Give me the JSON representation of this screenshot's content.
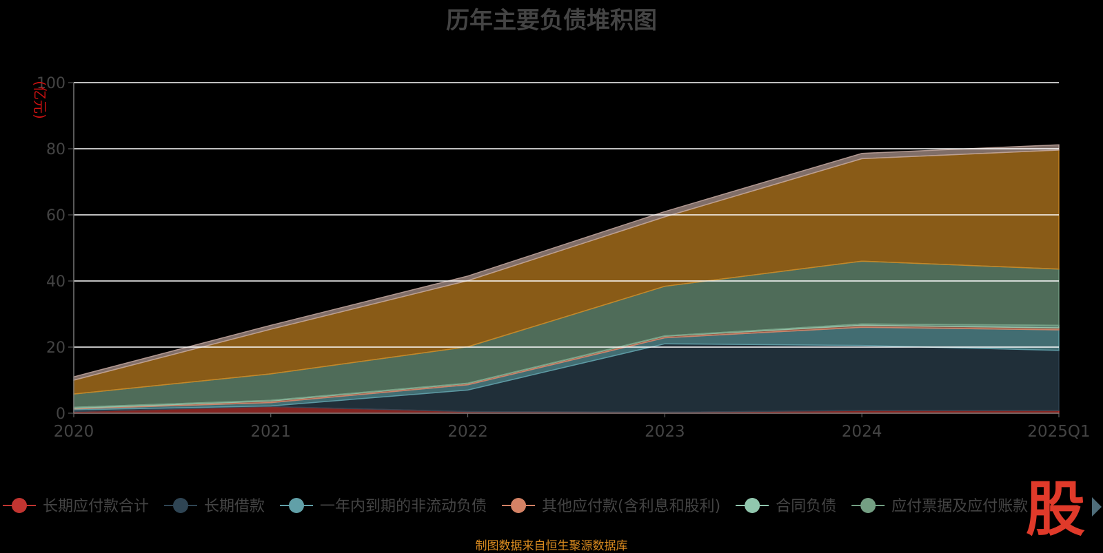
{
  "title": "历年主要负债堆积图",
  "source_note": "制图数据来自恒生聚源数据库",
  "logo_text": "股",
  "colors": {
    "background": "#000000",
    "grid": "#ffffff",
    "axis_text": "#444444",
    "ylabel": "#cc1111",
    "source": "#d98a1f",
    "logo": "#e03a2a"
  },
  "chart_data": {
    "type": "area",
    "stacked": true,
    "title": "历年主要负债堆积图",
    "ylabel": "(亿元)",
    "xlabel": "",
    "categories": [
      "2020",
      "2021",
      "2022",
      "2023",
      "2024",
      "2025Q1"
    ],
    "ylim": [
      0,
      100
    ],
    "yticks": [
      0,
      20,
      40,
      60,
      80,
      100
    ],
    "grid": true,
    "legend_position": "bottom",
    "series": [
      {
        "name": "长期应付款合计",
        "color": "#c23531",
        "values": [
          0.5,
          2.0,
          0.5,
          0.3,
          0.8,
          0.8
        ]
      },
      {
        "name": "长期借款",
        "color": "#2f4554",
        "values": [
          0.5,
          0.2,
          6.5,
          20.7,
          19.7,
          18.2
        ]
      },
      {
        "name": "一年内到期的非流动负债",
        "color": "#61a0a8",
        "values": [
          0.3,
          1.0,
          1.6,
          1.8,
          5.5,
          6.2
        ]
      },
      {
        "name": "其他应付款(含利息和股利)",
        "color": "#d48265",
        "values": [
          0.2,
          0.5,
          0.4,
          0.5,
          0.6,
          0.6
        ]
      },
      {
        "name": "合同负债",
        "color": "#91c7ae",
        "values": [
          0.3,
          0.2,
          0.1,
          0.1,
          0.4,
          0.8
        ]
      },
      {
        "name": "应付票据及应付账款",
        "color": "#749f83",
        "values": [
          4.0,
          8.0,
          11.0,
          15.0,
          19.0,
          17.0
        ]
      },
      {
        "name": "",
        "color": "#ca8622",
        "values": [
          4.2,
          13.5,
          20.0,
          21.0,
          31.0,
          36.0
        ]
      },
      {
        "name": "",
        "color": "#bda29a",
        "values": [
          1.0,
          1.2,
          1.4,
          1.6,
          1.6,
          1.6
        ]
      }
    ]
  }
}
